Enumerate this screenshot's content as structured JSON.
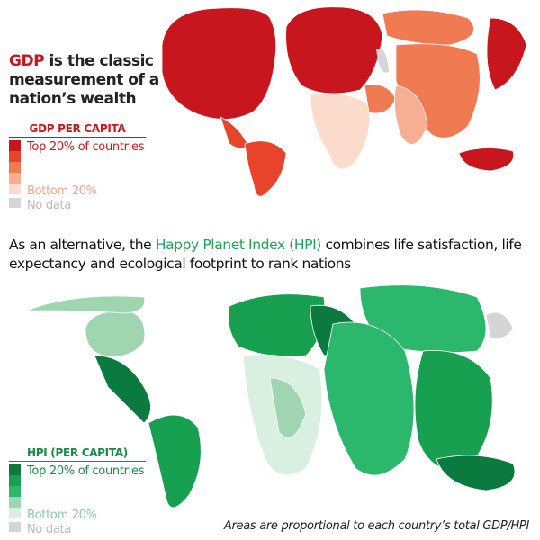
{
  "gdp": {
    "intro_highlight": "GDP",
    "intro_rest": " is the classic measurement of a nation’s wealth",
    "legend": {
      "title": "GDP PER CAPITA",
      "top_label": "Top 20% of countries",
      "bottom_label": "Bottom 20%",
      "nodata_label": "No data",
      "colors": [
        "#c8161e",
        "#e8432b",
        "#f07a52",
        "#f7ae93",
        "#fcdccd"
      ],
      "nodata_color": "#d5d5d5"
    }
  },
  "headline": {
    "pre": "As an alternative, the ",
    "highlight": "Happy Planet Index (HPI)",
    "post": " combines life satisfaction, life expectancy and ecological footprint to rank nations"
  },
  "hpi": {
    "legend": {
      "title": "HPI (PER CAPITA)",
      "top_label": "Top 20% of countries",
      "bottom_label": "Bottom 20%",
      "nodata_label": "No data",
      "colors": [
        "#0b7a3e",
        "#16a04f",
        "#2cb86c",
        "#9fd6b1",
        "#d9efdf"
      ],
      "nodata_color": "#d5d5d5"
    }
  },
  "footnote": "Areas are proportional to each country’s total GDP/HPI"
}
